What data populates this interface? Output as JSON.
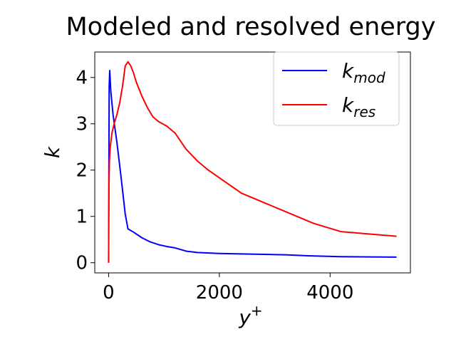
{
  "chart_data": {
    "type": "line",
    "title": "Modeled and resolved energy",
    "xlabel": "y",
    "xlabel_sup": "+",
    "ylabel": "k",
    "xlim": [
      -250,
      5450
    ],
    "ylim": [
      -0.22,
      4.55
    ],
    "xticks": [
      0,
      2000,
      4000
    ],
    "xtick_labels": [
      "0",
      "2000",
      "4000"
    ],
    "yticks": [
      0,
      1,
      2,
      3,
      4
    ],
    "ytick_labels": [
      "0",
      "1",
      "2",
      "3",
      "4"
    ],
    "grid": false,
    "legend_position": "top-right",
    "series": [
      {
        "name": "k_mod",
        "label_base": "k",
        "label_sub": "mod",
        "color": "#0000ff",
        "x": [
          0,
          5,
          10,
          20,
          40,
          80,
          150,
          220,
          300,
          350,
          450,
          600,
          750,
          900,
          1050,
          1200,
          1400,
          1600,
          2000,
          2400,
          2800,
          3200,
          3600,
          4200,
          4800,
          5200
        ],
        "y": [
          0.0,
          2.0,
          3.8,
          4.15,
          3.7,
          3.2,
          2.6,
          1.9,
          1.05,
          0.73,
          0.66,
          0.54,
          0.45,
          0.39,
          0.35,
          0.32,
          0.25,
          0.22,
          0.2,
          0.19,
          0.18,
          0.17,
          0.15,
          0.13,
          0.125,
          0.12
        ]
      },
      {
        "name": "k_res",
        "label_base": "k",
        "label_sub": "res",
        "color": "#ff0000",
        "x": [
          0,
          3,
          8,
          15,
          30,
          60,
          100,
          150,
          200,
          250,
          300,
          350,
          400,
          450,
          500,
          600,
          700,
          800,
          900,
          1050,
          1200,
          1400,
          1600,
          1800,
          2100,
          2400,
          2800,
          3200,
          3700,
          4200,
          4700,
          5200
        ],
        "y": [
          0.0,
          1.0,
          1.8,
          2.2,
          2.5,
          2.8,
          3.0,
          3.2,
          3.45,
          3.8,
          4.25,
          4.34,
          4.25,
          4.1,
          3.9,
          3.6,
          3.35,
          3.15,
          3.05,
          2.95,
          2.8,
          2.45,
          2.2,
          2.0,
          1.75,
          1.5,
          1.3,
          1.1,
          0.85,
          0.67,
          0.62,
          0.57
        ]
      }
    ]
  }
}
